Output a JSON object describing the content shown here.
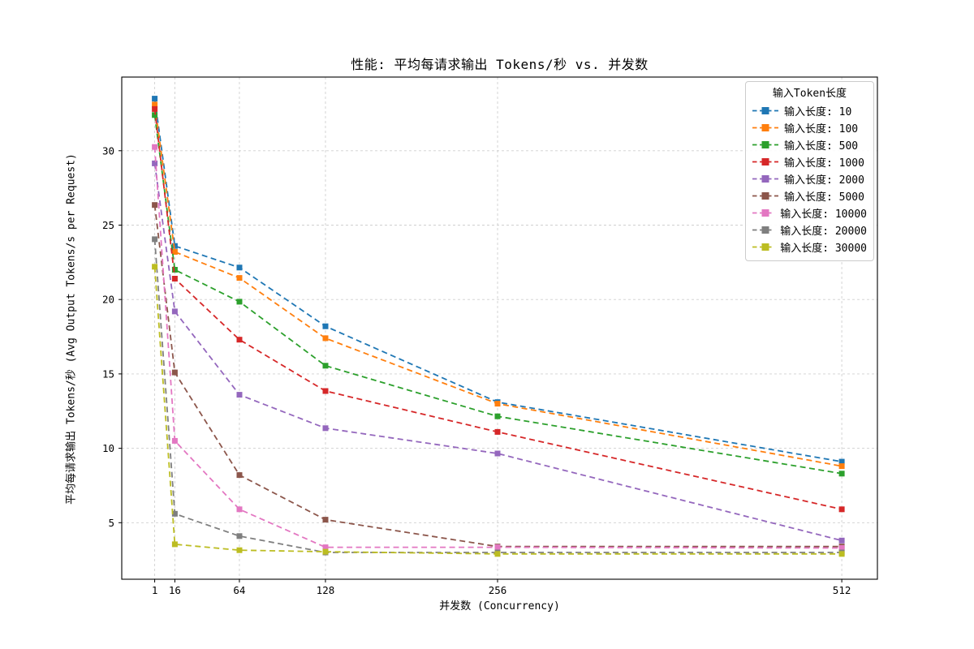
{
  "chart_data": {
    "type": "line",
    "title": "性能: 平均每请求输出 Tokens/秒 vs. 并发数",
    "xlabel": "并发数 (Concurrency)",
    "ylabel": "平均每请求输出 Tokens/秒 (Avg Output Tokens/s per Request)",
    "legend_title": "输入Token长度",
    "legend_position": "upper right",
    "line_style": "dashed",
    "marker": "square",
    "grid": true,
    "grid_color": "#cfcfcf",
    "axis_color": "#000000",
    "x": [
      1,
      16,
      64,
      128,
      256,
      512
    ],
    "xticks": [
      "1",
      "16",
      "64",
      "128",
      "256",
      "512"
    ],
    "yticks": [
      "5",
      "10",
      "15",
      "20",
      "25",
      "30"
    ],
    "xlim": [
      -23.5,
      538.5
    ],
    "ylim": [
      1.2,
      34.95
    ],
    "series": [
      {
        "name": "输入长度: 10",
        "color": "#1f77b4",
        "values": [
          33.5,
          23.6,
          22.15,
          18.2,
          13.1,
          9.1
        ]
      },
      {
        "name": "输入长度: 100",
        "color": "#ff7f0e",
        "values": [
          33.1,
          23.2,
          21.45,
          17.4,
          13.0,
          8.8
        ]
      },
      {
        "name": "输入长度: 500",
        "color": "#2ca02c",
        "values": [
          32.4,
          22.0,
          19.85,
          15.55,
          12.15,
          8.3
        ]
      },
      {
        "name": "输入长度: 1000",
        "color": "#d62728",
        "values": [
          32.8,
          21.4,
          17.3,
          13.85,
          11.1,
          5.9
        ]
      },
      {
        "name": "输入长度: 2000",
        "color": "#9467bd",
        "values": [
          29.15,
          19.2,
          13.6,
          11.35,
          9.65,
          3.8
        ]
      },
      {
        "name": "输入长度: 5000",
        "color": "#8c564b",
        "values": [
          26.35,
          15.1,
          8.2,
          5.2,
          3.4,
          3.4
        ]
      },
      {
        "name": "输入长度: 10000",
        "color": "#e377c2",
        "values": [
          30.25,
          10.5,
          5.9,
          3.35,
          3.35,
          3.3
        ]
      },
      {
        "name": "输入长度: 20000",
        "color": "#7f7f7f",
        "values": [
          24.05,
          5.6,
          4.1,
          3.0,
          3.0,
          3.0
        ]
      },
      {
        "name": "输入长度: 30000",
        "color": "#bcbd22",
        "values": [
          22.2,
          3.55,
          3.15,
          3.05,
          2.9,
          2.9
        ]
      }
    ]
  }
}
